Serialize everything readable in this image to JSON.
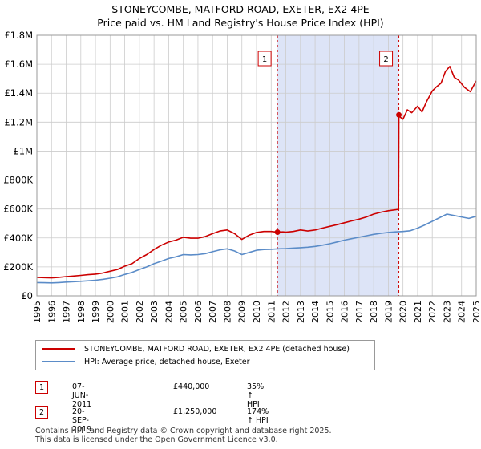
{
  "chart_data": {
    "type": "line",
    "title": "STONEYCOMBE, MATFORD ROAD, EXETER, EX2 4PE",
    "subtitle": "Price paid vs. HM Land Registry's House Price Index (HPI)",
    "y_tick_labels": [
      "£0",
      "£200K",
      "£400K",
      "£600K",
      "£800K",
      "£1M",
      "£1.2M",
      "£1.4M",
      "£1.6M",
      "£1.8M"
    ],
    "y_ticks": [
      0,
      200000,
      400000,
      600000,
      800000,
      1000000,
      1200000,
      1400000,
      1600000,
      1800000
    ],
    "ylim": [
      0,
      1800000
    ],
    "x_tick_labels": [
      "1995",
      "1996",
      "1997",
      "1998",
      "1999",
      "2000",
      "2001",
      "2002",
      "2003",
      "2004",
      "2005",
      "2006",
      "2007",
      "2008",
      "2009",
      "2010",
      "2011",
      "2012",
      "2013",
      "2014",
      "2015",
      "2016",
      "2017",
      "2018",
      "2019",
      "2020",
      "2021",
      "2022",
      "2023",
      "2024",
      "2025"
    ],
    "xlim": [
      1995,
      2025
    ],
    "grid": true,
    "shaded_region": {
      "from": 2011.43,
      "to": 2019.72,
      "color": "#dde4f7"
    },
    "series": [
      {
        "name": "STONEYCOMBE, MATFORD ROAD, EXETER, EX2 4PE (detached house)",
        "color": "#cc0000",
        "x": [
          1995,
          1995.5,
          1996,
          1996.5,
          1997,
          1997.5,
          1998,
          1998.5,
          1999,
          1999.5,
          2000,
          2000.5,
          2001,
          2001.5,
          2002,
          2002.5,
          2003,
          2003.5,
          2004,
          2004.5,
          2005,
          2005.5,
          2006,
          2006.5,
          2007,
          2007.5,
          2008,
          2008.5,
          2009,
          2009.5,
          2010,
          2010.5,
          2011,
          2011.43,
          2011.8,
          2012,
          2012.5,
          2013,
          2013.5,
          2014,
          2014.5,
          2015,
          2015.5,
          2016,
          2016.5,
          2017,
          2017.5,
          2018,
          2018.5,
          2019,
          2019.5,
          2019.7,
          2019.72,
          2019.8,
          2020,
          2020.3,
          2020.6,
          2021,
          2021.3,
          2021.6,
          2022,
          2022.3,
          2022.6,
          2022.9,
          2023.2,
          2023.5,
          2023.8,
          2024.2,
          2024.6,
          2025
        ],
        "values": [
          128000,
          126000,
          124000,
          128000,
          133000,
          137000,
          141000,
          146000,
          150000,
          158000,
          170000,
          182000,
          205000,
          222000,
          258000,
          285000,
          320000,
          350000,
          372000,
          385000,
          405000,
          398000,
          398000,
          410000,
          430000,
          448000,
          455000,
          430000,
          390000,
          420000,
          438000,
          445000,
          445000,
          440000,
          442000,
          440000,
          445000,
          455000,
          448000,
          455000,
          468000,
          480000,
          492000,
          505000,
          518000,
          530000,
          545000,
          565000,
          578000,
          588000,
          595000,
          598000,
          1250000,
          1235000,
          1220000,
          1285000,
          1265000,
          1310000,
          1270000,
          1340000,
          1415000,
          1445000,
          1470000,
          1550000,
          1585000,
          1510000,
          1490000,
          1440000,
          1410000,
          1485000
        ]
      },
      {
        "name": "HPI: Average price, detached house, Exeter",
        "color": "#5b8cc8",
        "x": [
          1995,
          1995.5,
          1996,
          1996.5,
          1997,
          1997.5,
          1998,
          1998.5,
          1999,
          1999.5,
          2000,
          2000.5,
          2001,
          2001.5,
          2002,
          2002.5,
          2003,
          2003.5,
          2004,
          2004.5,
          2005,
          2005.5,
          2006,
          2006.5,
          2007,
          2007.5,
          2008,
          2008.5,
          2009,
          2009.5,
          2010,
          2010.5,
          2011,
          2011.5,
          2012,
          2012.5,
          2013,
          2013.5,
          2014,
          2014.5,
          2015,
          2015.5,
          2016,
          2016.5,
          2017,
          2017.5,
          2018,
          2018.5,
          2019,
          2019.5,
          2020,
          2020.5,
          2021,
          2021.5,
          2022,
          2022.5,
          2023,
          2023.5,
          2024,
          2024.5,
          2025
        ],
        "values": [
          92000,
          91000,
          90000,
          92000,
          95000,
          98000,
          101000,
          104000,
          108000,
          114000,
          122000,
          131000,
          148000,
          162000,
          182000,
          200000,
          222000,
          240000,
          258000,
          270000,
          285000,
          283000,
          285000,
          292000,
          305000,
          318000,
          325000,
          310000,
          285000,
          300000,
          315000,
          320000,
          322000,
          325000,
          327000,
          330000,
          333000,
          336000,
          342000,
          350000,
          360000,
          372000,
          385000,
          395000,
          405000,
          415000,
          425000,
          432000,
          438000,
          442000,
          445000,
          450000,
          468000,
          490000,
          515000,
          540000,
          565000,
          555000,
          545000,
          535000,
          550000
        ]
      }
    ],
    "markers": [
      {
        "label": "1",
        "x": 2011.43,
        "value": 440000
      },
      {
        "label": "2",
        "x": 2019.72,
        "value": 1250000
      }
    ]
  },
  "legend": {
    "property_label": "STONEYCOMBE, MATFORD ROAD, EXETER, EX2 4PE (detached house)",
    "hpi_label": "HPI: Average price, detached house, Exeter"
  },
  "transactions": [
    {
      "num": "1",
      "date": "07-JUN-2011",
      "price": "£440,000",
      "hpi": "35% ↑ HPI"
    },
    {
      "num": "2",
      "date": "20-SEP-2019",
      "price": "£1,250,000",
      "hpi": "174% ↑ HPI"
    }
  ],
  "footer": {
    "line1": "Contains HM Land Registry data © Crown copyright and database right 2025.",
    "line2": "This data is licensed under the Open Government Licence v3.0."
  },
  "colors": {
    "property": "#cc0000",
    "hpi": "#5b8cc8",
    "shade": "#dde4f7",
    "grid": "#cccccc"
  }
}
